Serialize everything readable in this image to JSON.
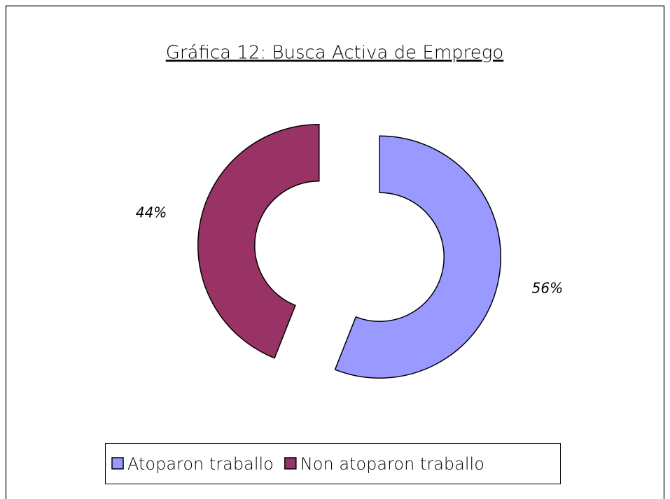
{
  "chart_data": {
    "type": "pie",
    "title": "Gráfica 12: Busca Activa de Emprego",
    "categories": [
      "Atoparon traballo",
      "Non atoparon traballo"
    ],
    "values": [
      56,
      44
    ],
    "value_labels": [
      "56%",
      "44%"
    ],
    "colors": [
      "#9999ff",
      "#993366"
    ],
    "donut": true,
    "exploded": true,
    "legend": "bottom"
  }
}
